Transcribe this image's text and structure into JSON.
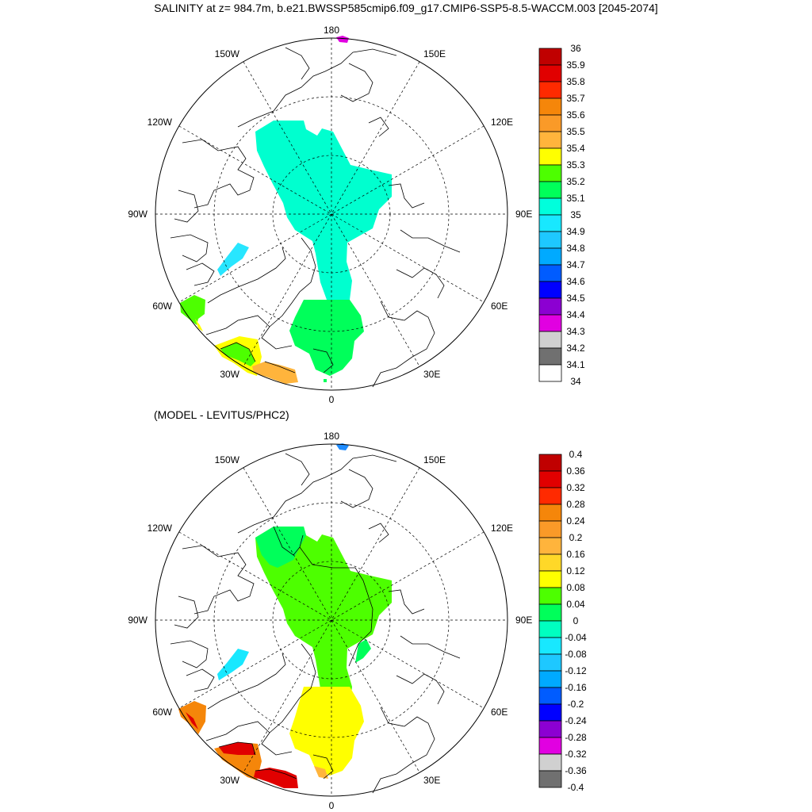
{
  "title": "SALINITY at z= 984.7m, b.e21.BWSSP585cmip6.f09_g17.CMIP6-SSP5-8.5-WACCM.003 [2045-2074]",
  "subtitle": "(MODEL - LEVITUS/PHC2)",
  "longitude_labels": {
    "top": "180",
    "bottom": "0",
    "left": "90W",
    "right": "90E",
    "ul1": "150W",
    "ul2": "120W",
    "ur1": "150E",
    "ur2": "120E",
    "ll1": "60W",
    "ll2": "30W",
    "lr1": "60E",
    "lr2": "30E"
  },
  "colorbar_top": {
    "labels": [
      "36",
      "35.9",
      "35.8",
      "35.7",
      "35.6",
      "35.5",
      "35.4",
      "35.3",
      "35.2",
      "35.1",
      "35",
      "34.9",
      "34.8",
      "34.7",
      "34.6",
      "34.5",
      "34.4",
      "34.3",
      "34.2",
      "34.1",
      "34"
    ],
    "colors": [
      "#c00000",
      "#e10000",
      "#ff2a00",
      "#f5860a",
      "#fa9a28",
      "#ffb43c",
      "#ffff00",
      "#4dff00",
      "#00ff5a",
      "#00ffdc",
      "#18e8ff",
      "#1ec8ff",
      "#00aaff",
      "#005cff",
      "#0000ff",
      "#8c00d2",
      "#e100e1",
      "#d0d0d0",
      "#707070"
    ]
  },
  "colorbar_bottom": {
    "labels": [
      "0.4",
      "0.36",
      "0.32",
      "0.28",
      "0.24",
      "0.2",
      "0.16",
      "0.12",
      "0.08",
      "0.04",
      "0",
      "-0.04",
      "-0.08",
      "-0.12",
      "-0.16",
      "-0.2",
      "-0.24",
      "-0.28",
      "-0.32",
      "-0.36",
      "-0.4"
    ],
    "colors": [
      "#c00000",
      "#e10000",
      "#ff2a00",
      "#f5860a",
      "#fa9a28",
      "#ffb43c",
      "#ffd828",
      "#ffff00",
      "#4dff00",
      "#00ff5a",
      "#00ffc0",
      "#18e8ff",
      "#1ec8ff",
      "#00aaff",
      "#005cff",
      "#0000ff",
      "#8c00d2",
      "#e100e1",
      "#d0d0d0",
      "#707070"
    ]
  },
  "colors": {
    "top_arctic_fill": "#00ffcf",
    "top_nordic_fill": "#00ff5a",
    "top_labrador_fill": "#28e6ff",
    "top_atlantic_green": "#4dff00",
    "top_atlantic_yellow": "#ffff00",
    "top_atlantic_orange": "#ffb43c",
    "top_bering_fill": "#e100e1",
    "bot_arctic_fill": "#4dff00",
    "bot_arctic_edge": "#00ff5a",
    "bot_nordic_fill": "#ffff00",
    "bot_labrador_fill": "#18e8ff",
    "bot_atlantic_orange": "#f5860a",
    "bot_atlantic_red": "#e10000",
    "bot_bering_fill": "#1e8cff"
  }
}
